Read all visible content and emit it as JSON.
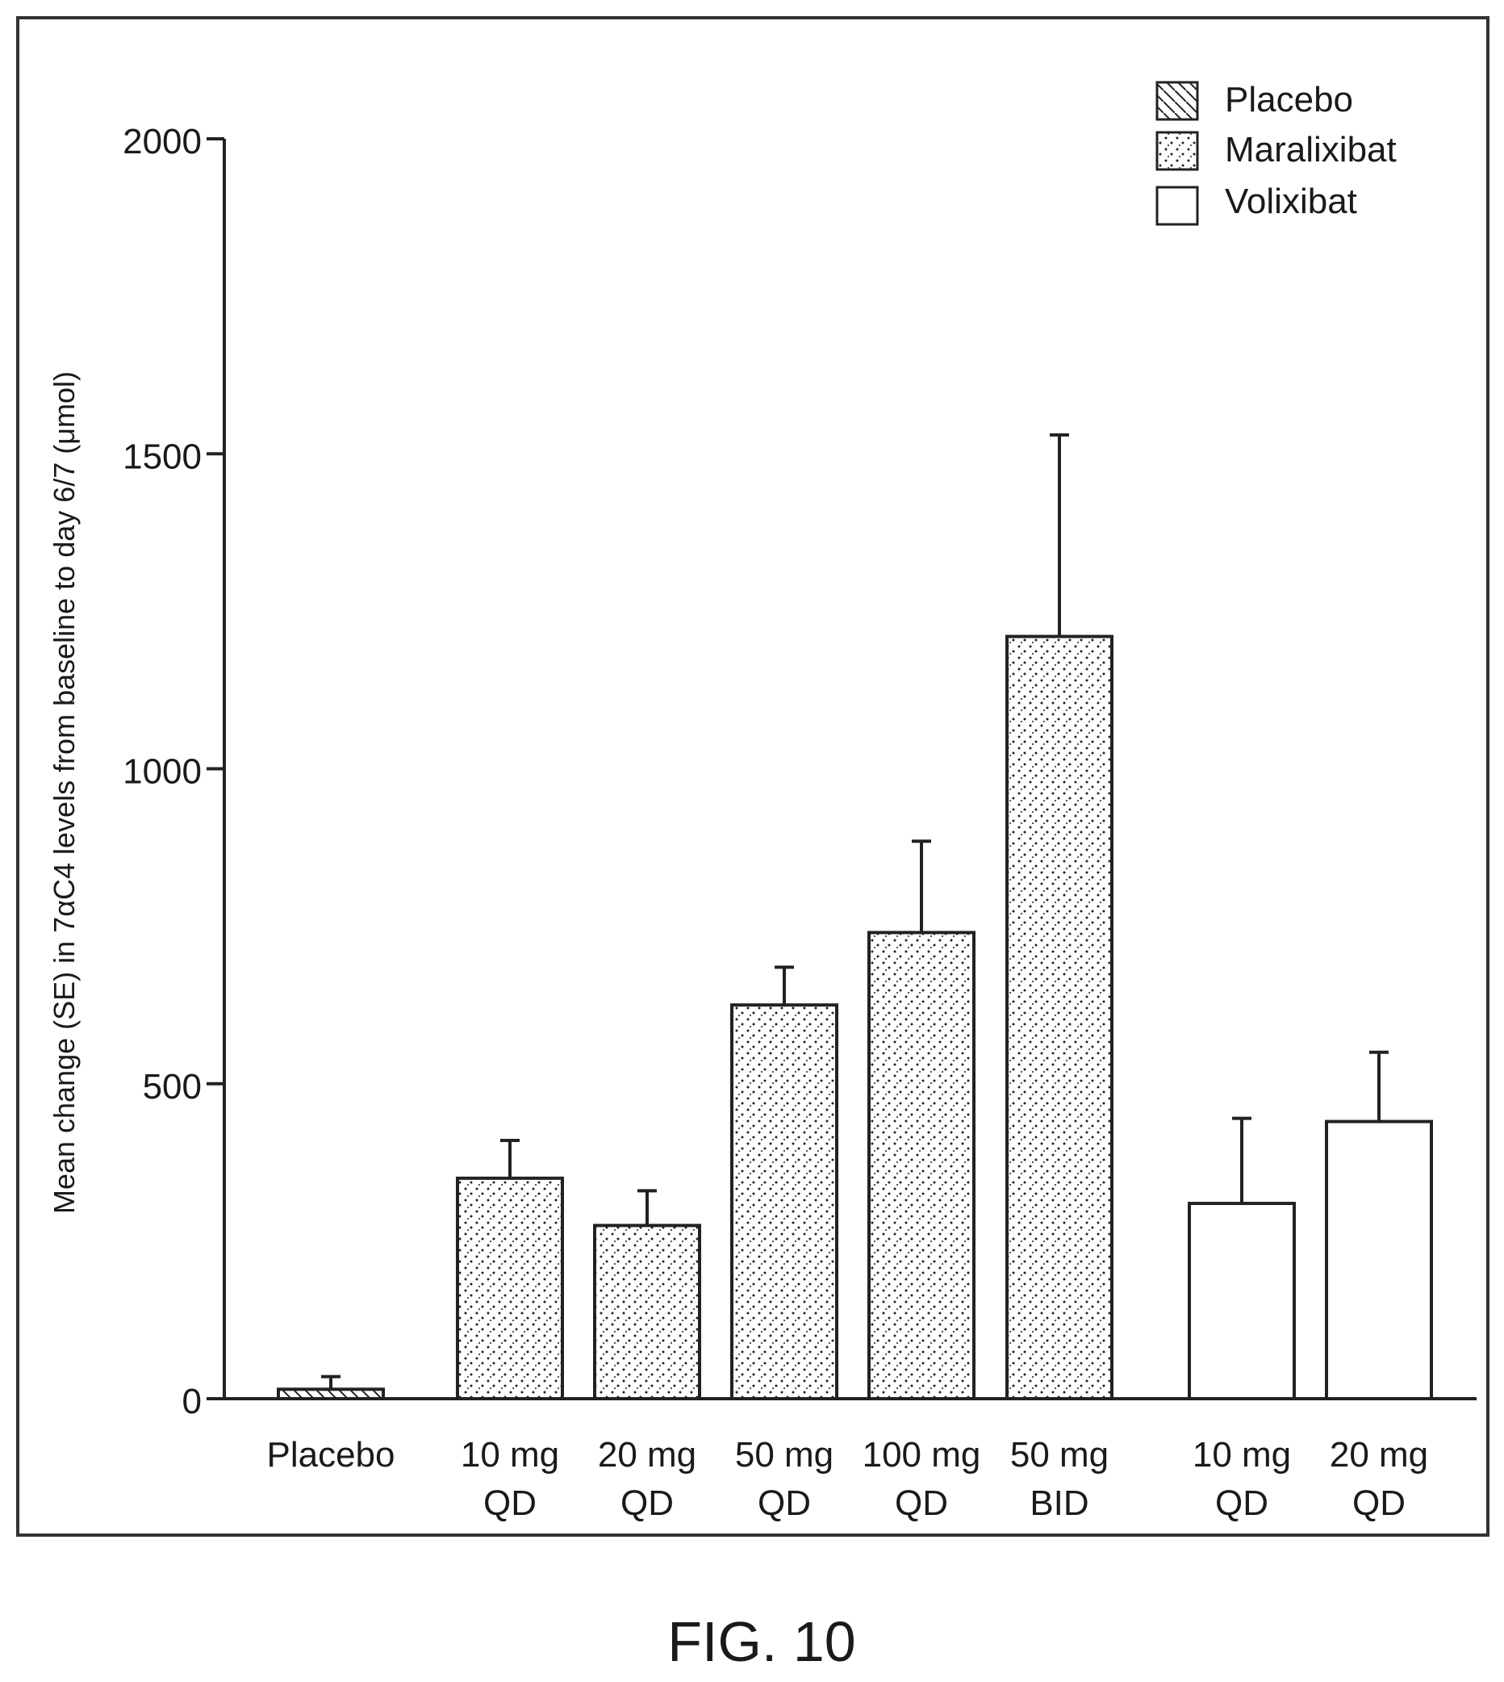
{
  "figure_caption": "FIG. 10",
  "chart_data": {
    "type": "bar",
    "ylabel": "Mean change (SE) in 7αC4 levels from baseline to day 6/7 (μmol)",
    "xlabel": "",
    "ylim": [
      0,
      2000
    ],
    "yticks": [
      0,
      500,
      1000,
      1500,
      2000
    ],
    "grid": false,
    "legend_position": "top-right",
    "legend": [
      {
        "name": "Placebo",
        "pattern": "hatch"
      },
      {
        "name": "Maralixibat",
        "pattern": "dots"
      },
      {
        "name": "Volixibat",
        "pattern": "empty"
      }
    ],
    "bars": [
      {
        "label": [
          "Placebo"
        ],
        "group": "Placebo",
        "value": 15,
        "error": 20
      },
      {
        "label": [
          "10 mg",
          "QD"
        ],
        "group": "Maralixibat",
        "value": 350,
        "error": 60
      },
      {
        "label": [
          "20 mg",
          "QD"
        ],
        "group": "Maralixibat",
        "value": 275,
        "error": 55
      },
      {
        "label": [
          "50 mg",
          "QD"
        ],
        "group": "Maralixibat",
        "value": 625,
        "error": 60
      },
      {
        "label": [
          "100 mg",
          "QD"
        ],
        "group": "Maralixibat",
        "value": 740,
        "error": 145
      },
      {
        "label": [
          "50 mg",
          "BID"
        ],
        "group": "Maralixibat",
        "value": 1210,
        "error": 320
      },
      {
        "label": [
          "10 mg",
          "QD"
        ],
        "group": "Volixibat",
        "value": 310,
        "error": 135
      },
      {
        "label": [
          "20 mg",
          "QD"
        ],
        "group": "Volixibat",
        "value": 440,
        "error": 110
      }
    ]
  }
}
